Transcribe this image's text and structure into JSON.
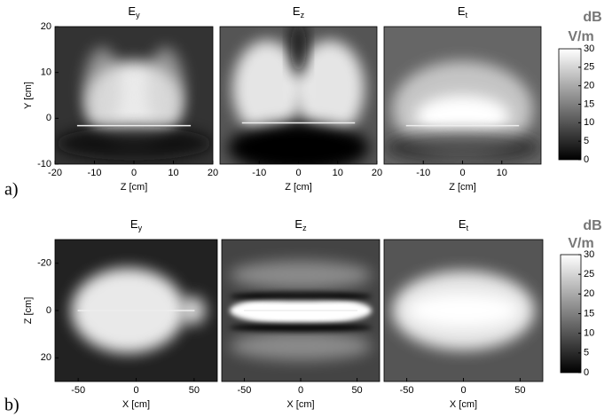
{
  "chart_data": [
    {
      "type": "heatmap",
      "title": "E",
      "title_sub": "y",
      "xlabel": "Z [cm]",
      "ylabel": "Y [cm]",
      "xlim": [
        -20,
        20
      ],
      "xticks": [
        -20,
        -10,
        0,
        10,
        20
      ],
      "ylim": [
        -10,
        20
      ],
      "yticks": [
        -10,
        0,
        10,
        20
      ]
    },
    {
      "type": "heatmap",
      "title": "E",
      "title_sub": "z",
      "xlabel": "Z [cm]",
      "xlim": [
        -20,
        20
      ],
      "xticks": [
        -10,
        0,
        10,
        20
      ],
      "ylim": [
        -10,
        20
      ]
    },
    {
      "type": "heatmap",
      "title": "E",
      "title_sub": "t",
      "xlabel": "Z [cm]",
      "xlim": [
        -20,
        20
      ],
      "xticks": [
        -10,
        0,
        10
      ],
      "ylim": [
        -10,
        20
      ]
    },
    {
      "type": "heatmap",
      "title": "E",
      "title_sub": "y",
      "xlabel": "X [cm]",
      "ylabel": "Z [cm]",
      "xlim": [
        -70,
        70
      ],
      "xticks": [
        -50,
        0,
        50
      ],
      "ylim": [
        30,
        -30
      ],
      "yticks": [
        -20,
        0,
        20
      ]
    },
    {
      "type": "heatmap",
      "title": "E",
      "title_sub": "z",
      "xlabel": "X [cm]",
      "xlim": [
        -70,
        70
      ],
      "xticks": [
        -50,
        0,
        50
      ],
      "ylim": [
        30,
        -30
      ]
    },
    {
      "type": "heatmap",
      "title": "E",
      "title_sub": "t",
      "xlabel": "X [cm]",
      "xlim": [
        -70,
        70
      ],
      "xticks": [
        -50,
        0,
        50
      ],
      "ylim": [
        30,
        -30
      ]
    }
  ],
  "colorbars": [
    {
      "unit": "dB",
      "unit2": "V/m",
      "lim": [
        0,
        30
      ],
      "ticks": [
        0,
        5,
        10,
        15,
        20,
        25,
        30
      ]
    },
    {
      "unit": "dB",
      "unit2": "V/m",
      "lim": [
        0,
        30
      ],
      "ticks": [
        0,
        5,
        10,
        15,
        20,
        25,
        30
      ]
    }
  ],
  "row_labels": [
    "a)",
    "b)"
  ]
}
